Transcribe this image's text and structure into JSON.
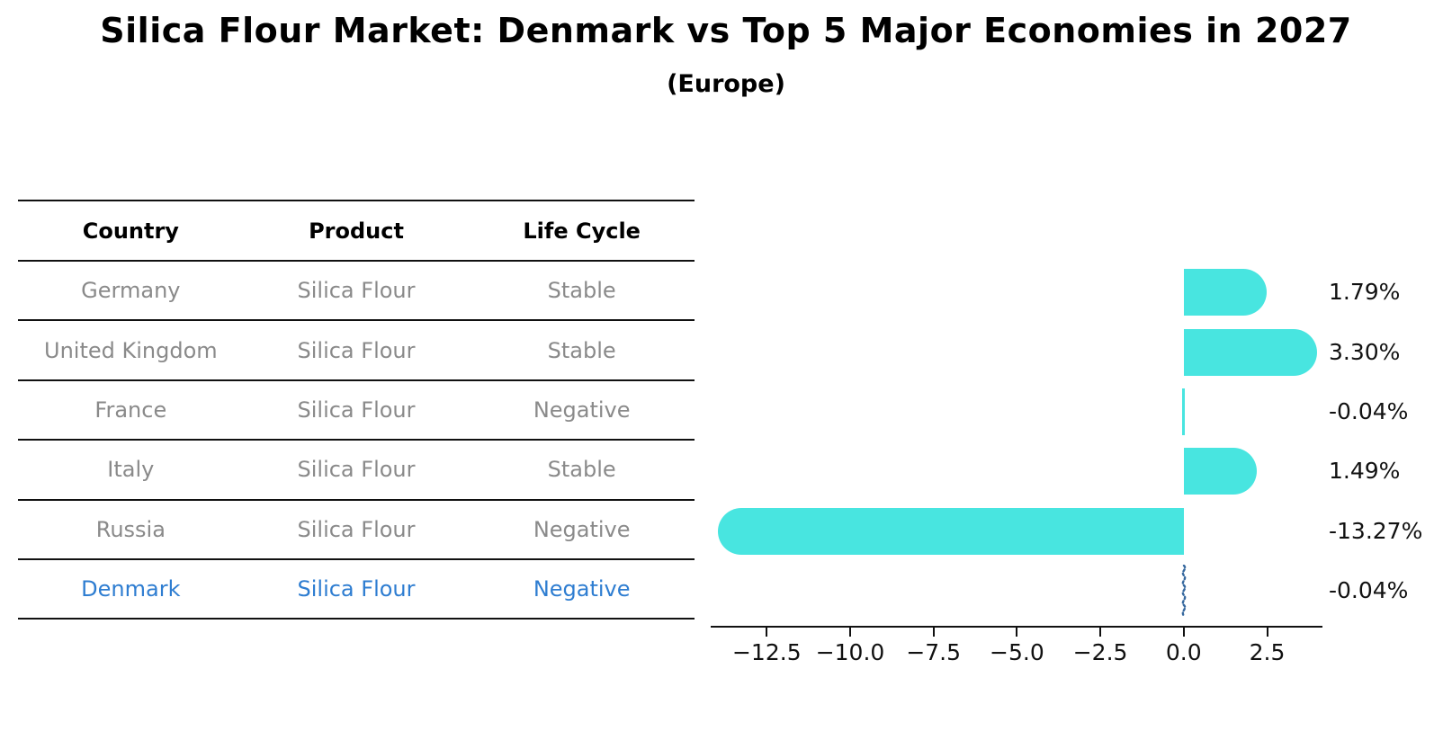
{
  "title": "Silica Flour Market: Denmark vs Top 5 Major Economies in 2027",
  "subtitle": "(Europe)",
  "table": {
    "headers": [
      "Country",
      "Product",
      "Life Cycle"
    ],
    "rows": [
      {
        "country": "Germany",
        "product": "Silica Flour",
        "life_cycle": "Stable",
        "highlighted": false
      },
      {
        "country": "United Kingdom",
        "product": "Silica Flour",
        "life_cycle": "Stable",
        "highlighted": false
      },
      {
        "country": "France",
        "product": "Silica Flour",
        "life_cycle": "Negative",
        "highlighted": false
      },
      {
        "country": "Italy",
        "product": "Silica Flour",
        "life_cycle": "Stable",
        "highlighted": false
      },
      {
        "country": "Russia",
        "product": "Silica Flour",
        "life_cycle": "Negative",
        "highlighted": false
      },
      {
        "country": "Denmark",
        "product": "Silica Flour",
        "life_cycle": "Negative",
        "highlighted": true
      }
    ]
  },
  "chart_data": {
    "type": "bar",
    "orientation": "horizontal",
    "title": "Silica Flour Market: Denmark vs Top 5 Major Economies in 2027 (Europe)",
    "categories": [
      "Germany",
      "United Kingdom",
      "France",
      "Italy",
      "Russia",
      "Denmark"
    ],
    "values": [
      1.79,
      3.3,
      -0.04,
      1.49,
      -13.27,
      -0.04
    ],
    "value_labels": [
      "1.79%",
      "3.30%",
      "-0.04%",
      "1.49%",
      "-13.27%",
      "-0.04%"
    ],
    "x_tick_labels": [
      "−12.5",
      "−10.0",
      "−7.5",
      "−5.0",
      "−2.5",
      "0.0",
      "2.5"
    ],
    "x_tick_values": [
      -12.5,
      -10.0,
      -7.5,
      -5.0,
      -2.5,
      0.0,
      2.5
    ],
    "xlim": [
      -14.2,
      4.2
    ],
    "grid": false,
    "legend_position": "none",
    "bar_color": "#48E5E0",
    "highlight_text_color": "#2E7DD1",
    "highlight_marker_color": "#36689E",
    "muted_text_color": "#8a8a8a",
    "axis_color": "#111111"
  }
}
